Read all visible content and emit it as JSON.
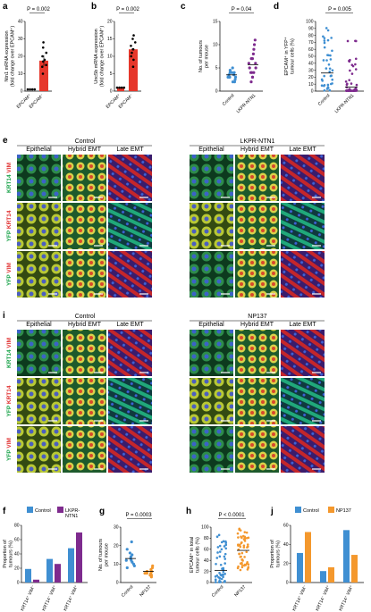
{
  "panels": {
    "a": {
      "label": "a",
      "p": "P = 0.002",
      "ylabel": [
        "Ntn1 mRNA expression",
        "(fold change over EPCAM⁺)"
      ],
      "yticks": [
        "0",
        "10",
        "20",
        "30",
        "40"
      ],
      "xticks": [
        "EPCAM⁺",
        "EPCAM⁻"
      ]
    },
    "b": {
      "label": "b",
      "p": "P = 0.002",
      "ylabel": [
        "Unc5b mRNA expression",
        "(fold change over EPCAM⁺)"
      ],
      "yticks": [
        "0",
        "5",
        "10",
        "15",
        "20"
      ],
      "xticks": [
        "EPCAM⁺",
        "EPCAM⁻"
      ]
    },
    "c": {
      "label": "c",
      "p": "P = 0.04",
      "ylabel": [
        "No. of tumours",
        "per mouse"
      ],
      "yticks": [
        "0",
        "5",
        "10",
        "15"
      ],
      "xticks": [
        "Control",
        "LKPR-NTN1"
      ]
    },
    "d": {
      "label": "d",
      "p": "P = 0.005",
      "ylabel": [
        "EPCAM⁺ in YFP⁺",
        "tumour cells (%)"
      ],
      "yticks": [
        "0",
        "10",
        "20",
        "30",
        "40",
        "50",
        "60",
        "70",
        "80",
        "90",
        "100"
      ],
      "xticks": [
        "Control",
        "LKPR-NTN1"
      ]
    },
    "e": {
      "label": "e",
      "group_left": "Control",
      "group_right": "LKPR-NTN1",
      "cols": [
        "Epithelial",
        "Hybrid EMT",
        "Late EMT",
        "Epithelial",
        "Hybrid EMT",
        "Late EMT"
      ],
      "rows": [
        [
          "KRT14 ",
          "VIM"
        ],
        [
          "YFP ",
          "KRT14"
        ],
        [
          "YFP ",
          "VIM"
        ]
      ]
    },
    "i": {
      "label": "i",
      "group_left": "Control",
      "group_right": "NP137",
      "cols": [
        "Epithelial",
        "Hybrid EMT",
        "Late EMT",
        "Epithelial",
        "Hybrid EMT",
        "Late EMT"
      ],
      "rows": [
        [
          "KRT14 ",
          "VIM"
        ],
        [
          "YFP ",
          "KRT14"
        ],
        [
          "YFP ",
          "VIM"
        ]
      ]
    },
    "f": {
      "label": "f",
      "ylabel": [
        "Proportion of",
        "tumours (%)"
      ],
      "yticks": [
        "0",
        "20",
        "40",
        "60",
        "80"
      ],
      "legend": [
        "Control",
        "LKPR-NTN1"
      ],
      "xticks": [
        "KRT14⁺ VIM⁻",
        "KRT14⁻ VIM⁺",
        "KRT14⁺ VIM⁺"
      ]
    },
    "g": {
      "label": "g",
      "p": "P = 0.0003",
      "ylabel": [
        "No. of tumours",
        "per mouse"
      ],
      "yticks": [
        "0",
        "10",
        "20",
        "30"
      ],
      "xticks": [
        "Control",
        "NP137"
      ]
    },
    "h": {
      "label": "h",
      "p": "P < 0.0001",
      "ylabel": [
        "EPCAM⁺ in total",
        "tumour cells (%)"
      ],
      "yticks": [
        "0",
        "20",
        "40",
        "60",
        "80",
        "100"
      ],
      "xticks": [
        "Control",
        "NP137"
      ]
    },
    "j": {
      "label": "j",
      "ylabel": [
        "Proportion of",
        "tumours (%)"
      ],
      "yticks": [
        "0",
        "20",
        "40",
        "60"
      ],
      "legend": [
        "Control",
        "NP137"
      ],
      "xticks": [
        "KRT14⁺ VIM⁻",
        "KRT14⁻ VIM⁺",
        "KRT14⁺ VIM⁺"
      ]
    }
  },
  "colors": {
    "blue": "#3f8fd2",
    "purple": "#7e2b8e",
    "orange": "#f4982d",
    "red": "#e6372b",
    "krt": "#1aa34a",
    "vim": "#e03030"
  },
  "chart_data": [
    {
      "panel": "a",
      "type": "bar",
      "categories": [
        "EPCAM⁺",
        "EPCAM⁻"
      ],
      "values": [
        1,
        17.5
      ],
      "ylim": [
        0,
        40
      ],
      "errors": [
        0,
        3
      ]
    },
    {
      "panel": "b",
      "type": "bar",
      "categories": [
        "EPCAM⁺",
        "EPCAM⁻"
      ],
      "values": [
        1,
        12
      ],
      "ylim": [
        0,
        20
      ],
      "errors": [
        0,
        1.5
      ]
    },
    {
      "panel": "c",
      "type": "scatter",
      "categories": [
        "Control",
        "LKPR-NTN1"
      ],
      "means": [
        3.5,
        5.7
      ],
      "ylim": [
        0,
        15
      ]
    },
    {
      "panel": "d",
      "type": "scatter",
      "categories": [
        "Control",
        "LKPR-NTN1"
      ],
      "means": [
        26,
        6
      ],
      "ylim": [
        0,
        100
      ]
    },
    {
      "panel": "f",
      "type": "bar",
      "categories": [
        "KRT14⁺ VIM⁻",
        "KRT14⁻ VIM⁺",
        "KRT14⁺ VIM⁺"
      ],
      "series": [
        {
          "name": "Control",
          "values": [
            19,
            33,
            48
          ]
        },
        {
          "name": "LKPR-NTN1",
          "values": [
            4,
            26,
            70
          ]
        }
      ],
      "ylim": [
        0,
        80
      ]
    },
    {
      "panel": "g",
      "type": "scatter",
      "categories": [
        "Control",
        "NP137"
      ],
      "means": [
        13,
        6
      ],
      "ylim": [
        0,
        30
      ]
    },
    {
      "panel": "h",
      "type": "scatter",
      "categories": [
        "Control",
        "NP137"
      ],
      "means": [
        22,
        58
      ],
      "ylim": [
        0,
        100
      ]
    },
    {
      "panel": "j",
      "type": "bar",
      "categories": [
        "KRT14⁺ VIM⁻",
        "KRT14⁻ VIM⁺",
        "KRT14⁺ VIM⁺"
      ],
      "series": [
        {
          "name": "Control",
          "values": [
            31,
            12,
            55
          ]
        },
        {
          "name": "NP137",
          "values": [
            53,
            16,
            29
          ]
        }
      ],
      "ylim": [
        0,
        60
      ]
    }
  ]
}
